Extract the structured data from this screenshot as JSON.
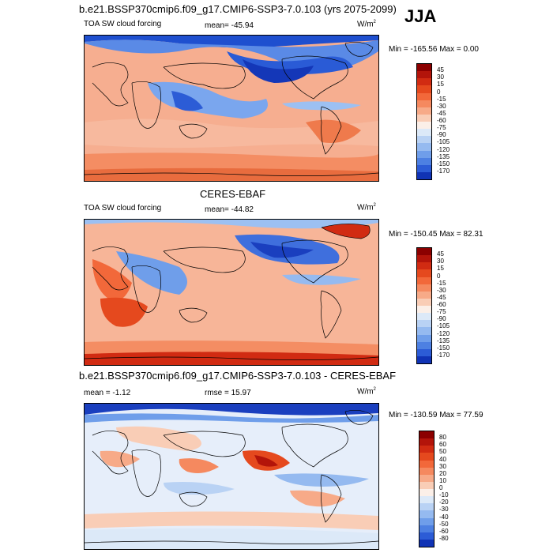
{
  "season": "JJA",
  "panels": [
    {
      "id": "model",
      "title": "b.e21.BSSP370cmip6.f09_g17.CMIP6-SSP3-7.0.103 (yrs 2075-2099)",
      "variable": "TOA SW cloud forcing",
      "stat1": "mean= -45.94",
      "stat2": "",
      "units": "W/m",
      "units_exp": "2",
      "minmax": "Min = -165.56 Max =   0.00",
      "levels": [
        "45",
        "30",
        "15",
        "0",
        "-15",
        "-30",
        "-45",
        "-60",
        "-75",
        "-90",
        "-105",
        "-120",
        "-135",
        "-150",
        "-170"
      ],
      "colors": [
        "#8b0000",
        "#b3140a",
        "#d12b12",
        "#e5491e",
        "#f2683a",
        "#f5895f",
        "#f7aa88",
        "#f9cdb6",
        "#fbefe8",
        "#dce9f8",
        "#b9d2f4",
        "#95baf0",
        "#6f9eea",
        "#4d80e2",
        "#2c5cd6",
        "#1033b5"
      ]
    },
    {
      "id": "obs",
      "title": "CERES-EBAF",
      "variable": "TOA SW cloud forcing",
      "stat1": "mean= -44.82",
      "stat2": "",
      "units": "W/m",
      "units_exp": "2",
      "minmax": "Min = -150.45 Max =  82.31",
      "levels": [
        "45",
        "30",
        "15",
        "0",
        "-15",
        "-30",
        "-45",
        "-60",
        "-75",
        "-90",
        "-105",
        "-120",
        "-135",
        "-150",
        "-170"
      ],
      "colors": [
        "#8b0000",
        "#b3140a",
        "#d12b12",
        "#e5491e",
        "#f2683a",
        "#f5895f",
        "#f7aa88",
        "#f9cdb6",
        "#fbefe8",
        "#dce9f8",
        "#b9d2f4",
        "#95baf0",
        "#6f9eea",
        "#4d80e2",
        "#2c5cd6",
        "#1033b5"
      ]
    },
    {
      "id": "diff",
      "title": "b.e21.BSSP370cmip6.f09_g17.CMIP6-SSP3-7.0.103 - CERES-EBAF",
      "variable": "",
      "stat1": "mean =  -1.12",
      "stat2": "rmse =  15.97",
      "units": "W/m",
      "units_exp": "2",
      "minmax": "Min = -130.59 Max =  77.59",
      "levels": [
        "80",
        "60",
        "50",
        "40",
        "30",
        "20",
        "10",
        "0",
        "-10",
        "-20",
        "-30",
        "-40",
        "-50",
        "-60",
        "-80"
      ],
      "colors": [
        "#8b0000",
        "#b3140a",
        "#d12b12",
        "#e5491e",
        "#f2683a",
        "#f5895f",
        "#f7aa88",
        "#f9cdb6",
        "#fbefe8",
        "#dce9f8",
        "#b9d2f4",
        "#95baf0",
        "#6f9eea",
        "#4d80e2",
        "#2c5cd6",
        "#1033b5"
      ]
    }
  ]
}
